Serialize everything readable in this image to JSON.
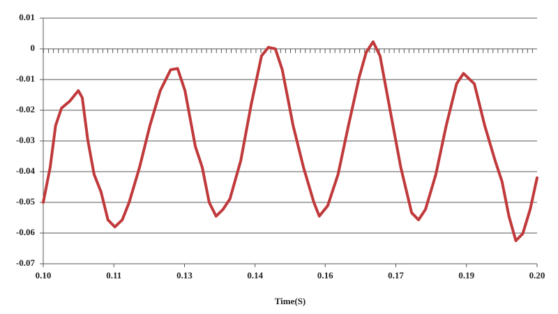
{
  "chart_data": {
    "type": "line",
    "x_label": "Time(S)",
    "x": [
      0.1,
      0.1014,
      0.1025,
      0.1037,
      0.1054,
      0.1071,
      0.1079,
      0.109,
      0.1103,
      0.1117,
      0.1131,
      0.1145,
      0.116,
      0.1174,
      0.1195,
      0.1216,
      0.1237,
      0.1258,
      0.1272,
      0.1287,
      0.1308,
      0.1322,
      0.1336,
      0.135,
      0.1364,
      0.1378,
      0.14,
      0.1421,
      0.1442,
      0.1456,
      0.147,
      0.1484,
      0.1506,
      0.1527,
      0.1548,
      0.1559,
      0.1576,
      0.1597,
      0.1618,
      0.164,
      0.1654,
      0.1668,
      0.1682,
      0.1703,
      0.1724,
      0.1746,
      0.176,
      0.1774,
      0.1795,
      0.1816,
      0.1837,
      0.1851,
      0.1873,
      0.1894,
      0.1915,
      0.1929,
      0.1943,
      0.1957,
      0.1971,
      0.1986,
      0.2
    ],
    "series": [
      {
        "color": "#c0393b",
        "values": [
          -0.05,
          -0.0386,
          -0.025,
          -0.0193,
          -0.017,
          -0.0136,
          -0.0159,
          -0.0295,
          -0.0409,
          -0.0466,
          -0.0557,
          -0.058,
          -0.0557,
          -0.05,
          -0.0386,
          -0.025,
          -0.0136,
          -0.0068,
          -0.0064,
          -0.0136,
          -0.0318,
          -0.0386,
          -0.05,
          -0.0545,
          -0.0523,
          -0.0489,
          -0.0364,
          -0.0182,
          -0.0023,
          0.0005,
          0,
          -0.0068,
          -0.025,
          -0.0386,
          -0.05,
          -0.0545,
          -0.0511,
          -0.0409,
          -0.025,
          -0.0091,
          -0.0011,
          0.0023,
          -0.0023,
          -0.0205,
          -0.0386,
          -0.0534,
          -0.0557,
          -0.0523,
          -0.0409,
          -0.025,
          -0.0114,
          -0.008,
          -0.0114,
          -0.025,
          -0.0364,
          -0.0432,
          -0.0545,
          -0.0625,
          -0.0602,
          -0.0523,
          -0.042
        ]
      }
    ],
    "xlim": [
      0.1,
      0.2
    ],
    "xticks": [
      {
        "value": 0.1,
        "label": "0.10"
      },
      {
        "value": 0.1143,
        "label": "0.11"
      },
      {
        "value": 0.1286,
        "label": "0.13"
      },
      {
        "value": 0.1429,
        "label": "0.14"
      },
      {
        "value": 0.1571,
        "label": "0.16"
      },
      {
        "value": 0.1714,
        "label": "0.17"
      },
      {
        "value": 0.1857,
        "label": "0.19"
      },
      {
        "value": 0.2,
        "label": "0.20"
      }
    ],
    "ylim": [
      -0.07,
      0.01
    ],
    "yticks": [
      0.01,
      0,
      -0.01,
      -0.02,
      -0.03,
      -0.04,
      -0.05,
      -0.06,
      -0.07
    ],
    "grid": true
  }
}
